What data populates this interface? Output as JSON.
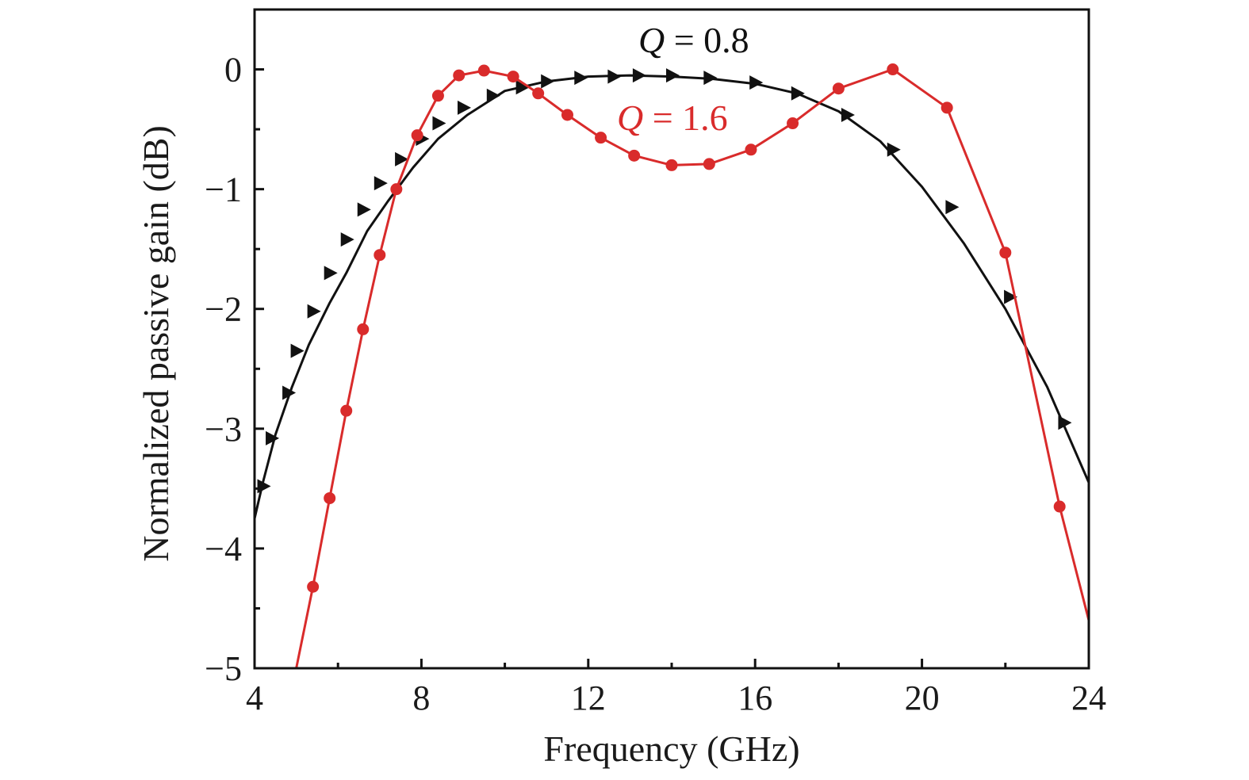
{
  "chart_data": {
    "type": "line",
    "xlabel": "Frequency (GHz)",
    "ylabel": "Normalized passive gain (dB)",
    "xlim": [
      4,
      24
    ],
    "ylim": [
      -5,
      0.5
    ],
    "x_ticks": [
      4,
      8,
      12,
      16,
      20,
      24
    ],
    "x_tick_labels": [
      "4",
      "8",
      "12",
      "16",
      "20",
      "24"
    ],
    "y_ticks": [
      0,
      -1,
      -2,
      -3,
      -4,
      -5
    ],
    "y_tick_labels": [
      "0",
      "−1",
      "−2",
      "−3",
      "−4",
      "−5"
    ],
    "grid": false,
    "legend": "none",
    "series": [
      {
        "name": "Q = 0.8",
        "label_symbol": "Q",
        "label_value": "= 0.8",
        "color": "#111111",
        "marker": "triangle-right",
        "line_x": [
          4.0,
          4.2,
          4.5,
          4.9,
          5.3,
          5.8,
          6.2,
          6.7,
          7.2,
          7.8,
          8.4,
          9.1,
          10.0,
          11.0,
          12.0,
          13.0,
          14.0,
          15.0,
          16.0,
          17.0,
          18.0,
          19.0,
          20.0,
          21.0,
          22.0,
          23.0,
          24.0
        ],
        "line_y": [
          -3.75,
          -3.45,
          -3.05,
          -2.65,
          -2.3,
          -1.95,
          -1.7,
          -1.35,
          -1.1,
          -0.82,
          -0.58,
          -0.38,
          -0.18,
          -0.1,
          -0.06,
          -0.05,
          -0.06,
          -0.08,
          -0.12,
          -0.2,
          -0.35,
          -0.6,
          -0.98,
          -1.45,
          -2.0,
          -2.65,
          -3.45
        ],
        "markers_x": [
          4.2,
          4.4,
          4.8,
          5.0,
          5.4,
          5.8,
          6.2,
          6.6,
          7.0,
          7.5,
          8.0,
          8.4,
          9.0,
          9.7,
          10.4,
          11.0,
          11.8,
          12.6,
          13.2,
          14.0,
          14.9,
          16.0,
          17.0,
          18.2,
          19.3,
          20.7,
          22.1,
          23.4
        ],
        "markers_y": [
          -3.48,
          -3.08,
          -2.7,
          -2.35,
          -2.02,
          -1.7,
          -1.42,
          -1.17,
          -0.95,
          -0.75,
          -0.58,
          -0.45,
          -0.32,
          -0.22,
          -0.15,
          -0.1,
          -0.07,
          -0.06,
          -0.05,
          -0.05,
          -0.07,
          -0.11,
          -0.2,
          -0.38,
          -0.67,
          -1.15,
          -1.9,
          -2.95
        ]
      },
      {
        "name": "Q = 1.6",
        "label_symbol": "Q",
        "label_value": "= 1.6",
        "color": "#d92b2b",
        "marker": "circle",
        "line_x": [
          5.0,
          5.4,
          5.8,
          6.2,
          6.6,
          7.0,
          7.4,
          7.9,
          8.4,
          8.9,
          9.5,
          10.2,
          10.8,
          11.5,
          12.3,
          13.1,
          14.0,
          14.9,
          15.9,
          16.9,
          18.0,
          19.3,
          20.6,
          22.0,
          23.3,
          24.0
        ],
        "line_y": [
          -5.0,
          -4.32,
          -3.58,
          -2.85,
          -2.17,
          -1.55,
          -1.0,
          -0.55,
          -0.22,
          -0.05,
          -0.01,
          -0.06,
          -0.2,
          -0.38,
          -0.57,
          -0.72,
          -0.8,
          -0.79,
          -0.67,
          -0.45,
          -0.16,
          0.0,
          -0.32,
          -1.53,
          -3.65,
          -4.6
        ],
        "markers_x": [
          5.4,
          5.8,
          6.2,
          6.6,
          7.0,
          7.4,
          7.9,
          8.4,
          8.9,
          9.5,
          10.2,
          10.8,
          11.5,
          12.3,
          13.1,
          14.0,
          14.9,
          15.9,
          16.9,
          18.0,
          19.3,
          20.6,
          22.0,
          23.3
        ],
        "markers_y": [
          -4.32,
          -3.58,
          -2.85,
          -2.17,
          -1.55,
          -1.0,
          -0.55,
          -0.22,
          -0.05,
          -0.01,
          -0.06,
          -0.2,
          -0.38,
          -0.57,
          -0.72,
          -0.8,
          -0.79,
          -0.67,
          -0.45,
          -0.16,
          0.0,
          -0.32,
          -1.53,
          -3.65
        ]
      }
    ]
  }
}
